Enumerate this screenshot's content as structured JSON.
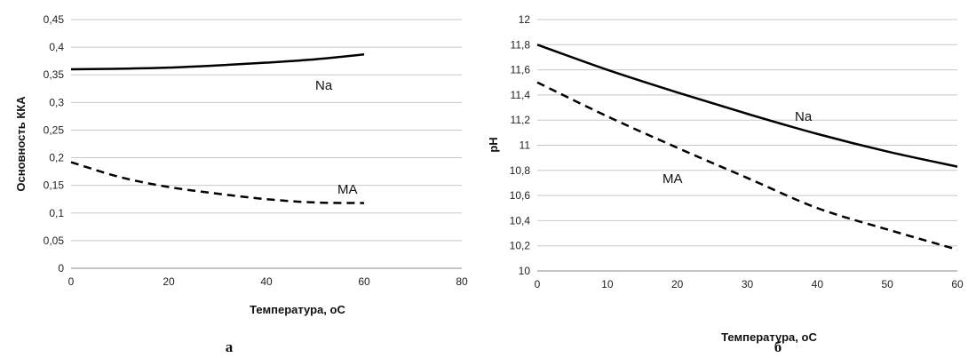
{
  "chart_data": [
    {
      "type": "line",
      "panel_label": "а",
      "xlabel": "Температура, оС",
      "ylabel": "Основность ККА",
      "xlim": [
        0,
        80
      ],
      "ylim": [
        0,
        0.45
      ],
      "x_ticks": [
        "0",
        "20",
        "40",
        "60",
        "80"
      ],
      "y_ticks": [
        "0",
        "0,05",
        "0,1",
        "0,15",
        "0,2",
        "0,25",
        "0,3",
        "0,35",
        "0,4",
        "0,45"
      ],
      "grid": "horizontal",
      "series": [
        {
          "name": "Na",
          "style": "solid",
          "x": [
            0,
            10,
            20,
            30,
            40,
            50,
            60
          ],
          "y": [
            0.36,
            0.361,
            0.363,
            0.367,
            0.372,
            0.378,
            0.387
          ]
        },
        {
          "name": "МА",
          "style": "dashed",
          "x": [
            0,
            10,
            20,
            30,
            40,
            50,
            60
          ],
          "y": [
            0.192,
            0.165,
            0.147,
            0.135,
            0.125,
            0.119,
            0.118
          ]
        }
      ]
    },
    {
      "type": "line",
      "panel_label": "б",
      "xlabel": "Температура, оС",
      "ylabel": "pH",
      "xlim": [
        0,
        60
      ],
      "ylim": [
        10,
        12
      ],
      "x_ticks": [
        "0",
        "10",
        "20",
        "30",
        "40",
        "50",
        "60"
      ],
      "y_ticks": [
        "10",
        "10,2",
        "10,4",
        "10,6",
        "10,8",
        "11",
        "11,2",
        "11,4",
        "11,6",
        "11,8",
        "12"
      ],
      "grid": "horizontal",
      "series": [
        {
          "name": "Na",
          "style": "solid",
          "x": [
            0,
            10,
            20,
            30,
            40,
            50,
            60
          ],
          "y": [
            11.8,
            11.6,
            11.42,
            11.25,
            11.09,
            10.95,
            10.83
          ]
        },
        {
          "name": "МА",
          "style": "dashed",
          "x": [
            0,
            10,
            20,
            30,
            40,
            50,
            60
          ],
          "y": [
            11.5,
            11.23,
            10.98,
            10.74,
            10.5,
            10.33,
            10.17
          ]
        }
      ]
    }
  ]
}
